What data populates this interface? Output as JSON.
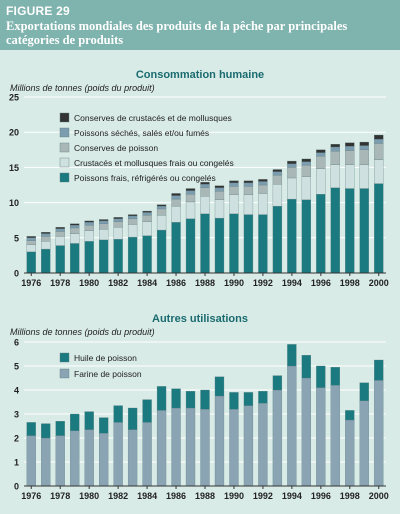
{
  "figure": {
    "label": "FIGURE 29",
    "title": "Exportations mondiales des produits de la pêche par principales catégories de produits"
  },
  "colors": {
    "header": "#7fb3ae",
    "background": "#d8ebe6",
    "chart_title": "#1a6b70",
    "axis": "#333333"
  },
  "chart_data": [
    {
      "type": "bar",
      "stacked": true,
      "title": "Consommation humaine",
      "ylabel": "Millions de tonnes (poids du produit)",
      "ylim": [
        0,
        25
      ],
      "yticks": [
        0,
        5,
        10,
        15,
        20,
        25
      ],
      "grid": true,
      "legend": "top-left",
      "categories": [
        1976,
        1977,
        1978,
        1979,
        1980,
        1981,
        1982,
        1983,
        1984,
        1985,
        1986,
        1987,
        1988,
        1989,
        1990,
        1991,
        1992,
        1993,
        1994,
        1995,
        1996,
        1997,
        1998,
        1999,
        2000
      ],
      "xtick_labels": [
        "1976",
        "1978",
        "1980",
        "1982",
        "1984",
        "1986",
        "1988",
        "1990",
        "1992",
        "1994",
        "1996",
        "1998",
        "2000"
      ],
      "series": [
        {
          "name": "Poissons frais, réfrigérés ou congelés",
          "color": "#1b7a80",
          "values": [
            3.0,
            3.4,
            3.9,
            4.2,
            4.5,
            4.7,
            4.8,
            5.1,
            5.3,
            6.1,
            7.2,
            7.7,
            8.4,
            7.8,
            8.4,
            8.3,
            8.3,
            9.5,
            10.5,
            10.4,
            11.2,
            12.1,
            12.0,
            12.0,
            12.7
          ]
        },
        {
          "name": "Crustacés et mollusques frais ou congelés",
          "color": "#cfe0e0",
          "values": [
            1.0,
            1.1,
            1.3,
            1.4,
            1.5,
            1.5,
            1.7,
            1.8,
            2.0,
            2.1,
            2.3,
            2.4,
            2.5,
            2.6,
            2.7,
            2.8,
            3.0,
            3.1,
            3.0,
            3.3,
            3.6,
            3.3,
            3.4,
            3.4,
            3.4
          ]
        },
        {
          "name": "Conserves de poisson",
          "color": "#aab7b7",
          "values": [
            0.6,
            0.7,
            0.7,
            0.8,
            0.8,
            0.8,
            0.8,
            0.8,
            0.9,
            0.9,
            1.0,
            1.1,
            1.2,
            1.2,
            1.2,
            1.2,
            1.2,
            1.3,
            1.5,
            1.6,
            1.8,
            1.9,
            2.0,
            2.1,
            2.3
          ]
        },
        {
          "name": "Poissons séchés, salés et/ou fumés",
          "color": "#7c9cb0",
          "values": [
            0.4,
            0.4,
            0.4,
            0.4,
            0.4,
            0.4,
            0.4,
            0.4,
            0.4,
            0.4,
            0.5,
            0.5,
            0.5,
            0.5,
            0.5,
            0.5,
            0.5,
            0.5,
            0.5,
            0.5,
            0.5,
            0.6,
            0.6,
            0.6,
            0.6
          ]
        },
        {
          "name": "Conserves de crustacés et de mollusques",
          "color": "#333333",
          "values": [
            0.2,
            0.2,
            0.2,
            0.2,
            0.2,
            0.2,
            0.2,
            0.2,
            0.2,
            0.2,
            0.3,
            0.3,
            0.3,
            0.3,
            0.3,
            0.3,
            0.3,
            0.3,
            0.4,
            0.4,
            0.4,
            0.4,
            0.5,
            0.5,
            0.6
          ]
        }
      ]
    },
    {
      "type": "bar",
      "stacked": true,
      "title": "Autres utilisations",
      "ylabel": "Millions de tonnes (poids du produit)",
      "ylim": [
        0,
        6
      ],
      "yticks": [
        0,
        1,
        2,
        3,
        4,
        5,
        6
      ],
      "grid": true,
      "legend": "top-left",
      "categories": [
        1976,
        1977,
        1978,
        1979,
        1980,
        1981,
        1982,
        1983,
        1984,
        1985,
        1986,
        1987,
        1988,
        1989,
        1990,
        1991,
        1992,
        1993,
        1994,
        1995,
        1996,
        1997,
        1998,
        1999,
        2000
      ],
      "xtick_labels": [
        "1976",
        "1978",
        "1980",
        "1982",
        "1984",
        "1986",
        "1988",
        "1990",
        "1992",
        "1994",
        "1996",
        "1998",
        "2000"
      ],
      "series": [
        {
          "name": "Farine de poisson",
          "color": "#8aa4b4",
          "values": [
            2.1,
            2.0,
            2.1,
            2.3,
            2.35,
            2.2,
            2.65,
            2.35,
            2.65,
            3.15,
            3.25,
            3.25,
            3.2,
            3.75,
            3.2,
            3.35,
            3.45,
            4.0,
            5.0,
            4.5,
            4.1,
            4.2,
            2.75,
            3.55,
            4.4
          ]
        },
        {
          "name": "Huile de poisson",
          "color": "#1b7a80",
          "values": [
            0.55,
            0.6,
            0.6,
            0.7,
            0.75,
            0.65,
            0.7,
            0.9,
            0.95,
            1.0,
            0.8,
            0.7,
            0.8,
            0.8,
            0.7,
            0.55,
            0.5,
            0.6,
            0.9,
            0.95,
            0.9,
            0.75,
            0.4,
            0.75,
            0.85
          ]
        }
      ]
    }
  ]
}
